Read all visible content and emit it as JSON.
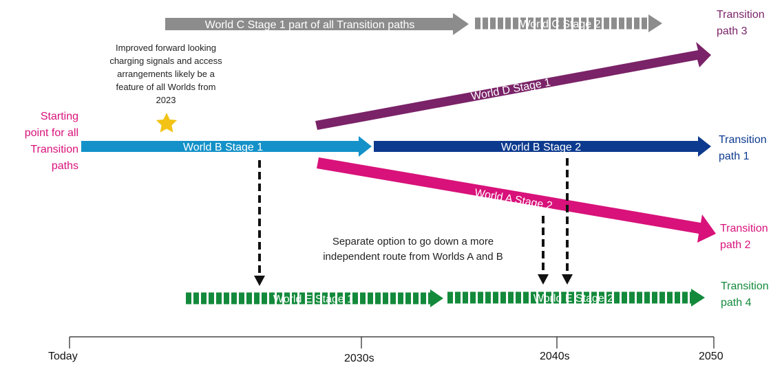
{
  "colors": {
    "grey": "#8c8c8c",
    "light_blue": "#1391c8",
    "dark_blue": "#0d3a8e",
    "purple": "#7a2368",
    "pink": "#d8127a",
    "green": "#138a3b",
    "black": "#111111",
    "star": "#f2c316"
  },
  "arrows": {
    "world_c_stage1": "World C Stage 1 part of all Transition paths",
    "world_c_stage2": "World C Stage 2",
    "world_d_stage1": "World D Stage 1",
    "world_b_stage1": "World B Stage 1",
    "world_b_stage2": "World B Stage 2",
    "world_a_stage2": "World A Stage 2",
    "world_e_stage1": "World E Stage 1",
    "world_e_stage2": "World E Stage 2"
  },
  "labels": {
    "starting_point": [
      "Starting",
      "point for all",
      "Transition",
      "paths"
    ],
    "transition_path_1": [
      "Transition",
      "path 1"
    ],
    "transition_path_2": [
      "Transition",
      "path 2"
    ],
    "transition_path_3": [
      "Transition",
      "path 3"
    ],
    "transition_path_4": [
      "Transition",
      "path 4"
    ]
  },
  "notes": {
    "charging": [
      "Improved forward looking",
      "charging signals and access",
      "arrangements likely be a",
      "feature of all Worlds from",
      "2023"
    ],
    "separate_option": [
      "Separate option to go down a more",
      "independent route from Worlds A and B"
    ]
  },
  "timeline": {
    "ticks": [
      "Today",
      "2030s",
      "2040s",
      "2050"
    ]
  }
}
